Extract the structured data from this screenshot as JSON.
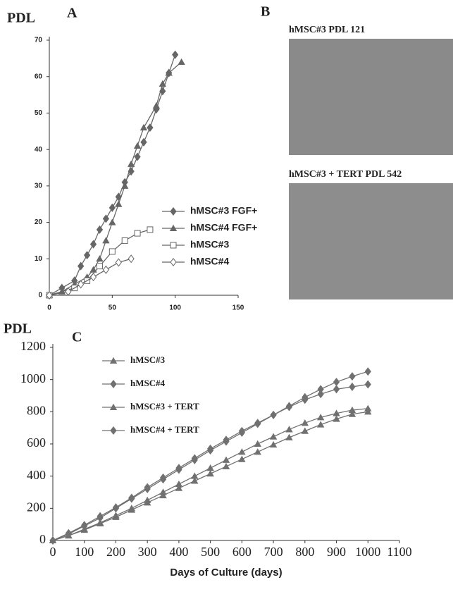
{
  "chart_data": [
    {
      "type": "line",
      "panel": "A",
      "ylabel": "PDL",
      "xlim": [
        0,
        150
      ],
      "xticks": [
        0,
        50,
        100,
        150
      ],
      "ylim": [
        0,
        70
      ],
      "yticks": [
        0,
        10,
        20,
        30,
        40,
        50,
        60,
        70
      ],
      "series": [
        {
          "name": "hMSC#3 FGF+",
          "color": "#666666",
          "marker": "diamond",
          "x": [
            0,
            10,
            20,
            25,
            30,
            35,
            40,
            45,
            50,
            55,
            60,
            65,
            70,
            75,
            80,
            85,
            90,
            95,
            100
          ],
          "values": [
            0,
            2,
            4,
            8,
            11,
            14,
            18,
            21,
            24,
            27,
            31,
            34,
            38,
            42,
            46,
            51,
            56,
            61,
            66
          ]
        },
        {
          "name": "hMSC#4 FGF+",
          "color": "#666666",
          "marker": "triangle",
          "x": [
            0,
            10,
            20,
            30,
            35,
            40,
            45,
            50,
            55,
            60,
            65,
            70,
            75,
            85,
            90,
            95,
            105
          ],
          "values": [
            0,
            1,
            3,
            5,
            7,
            10,
            15,
            20,
            25,
            30,
            36,
            41,
            46,
            52,
            58,
            61,
            64
          ]
        },
        {
          "name": "hMSC#3",
          "color": "#666666",
          "marker": "square",
          "x": [
            0,
            20,
            30,
            40,
            50,
            60,
            70,
            80
          ],
          "values": [
            0,
            2,
            4,
            8,
            12,
            15,
            17,
            18
          ]
        },
        {
          "name": "hMSC#4",
          "color": "#666666",
          "marker": "open-diamond",
          "x": [
            0,
            15,
            25,
            35,
            45,
            55,
            65
          ],
          "values": [
            0,
            1,
            3,
            5,
            7,
            9,
            10
          ]
        }
      ]
    },
    {
      "type": "line",
      "panel": "C",
      "ylabel": "PDL",
      "xlabel": "Days of Culture (days)",
      "xlim": [
        0,
        1100
      ],
      "xticks": [
        0,
        100,
        200,
        300,
        400,
        500,
        600,
        700,
        800,
        900,
        1000,
        1100
      ],
      "ylim": [
        0,
        1200
      ],
      "yticks": [
        0,
        200,
        400,
        600,
        800,
        1000,
        1200
      ],
      "series": [
        {
          "name": "hMSC#3",
          "color": "#707070",
          "marker": "triangle",
          "x": [
            0,
            50,
            100,
            150,
            200,
            250,
            300,
            350,
            400,
            450,
            500,
            550,
            600,
            650,
            700,
            750,
            800,
            850,
            900,
            950,
            1000
          ],
          "values": [
            0,
            30,
            65,
            105,
            145,
            190,
            235,
            280,
            325,
            370,
            415,
            460,
            505,
            550,
            595,
            640,
            680,
            720,
            755,
            785,
            800
          ]
        },
        {
          "name": "hMSC#4",
          "color": "#707070",
          "marker": "diamond",
          "x": [
            0,
            50,
            100,
            150,
            200,
            250,
            300,
            350,
            400,
            450,
            500,
            550,
            600,
            650,
            700,
            750,
            800,
            850,
            900,
            950,
            1000
          ],
          "values": [
            0,
            40,
            90,
            140,
            200,
            260,
            320,
            380,
            440,
            500,
            560,
            615,
            670,
            725,
            780,
            835,
            890,
            940,
            985,
            1020,
            1050
          ]
        },
        {
          "name": "hMSC#3 + TERT",
          "color": "#707070",
          "marker": "triangle",
          "x": [
            0,
            50,
            100,
            150,
            200,
            250,
            300,
            350,
            400,
            450,
            500,
            550,
            600,
            650,
            700,
            750,
            800,
            850,
            900,
            950,
            1000
          ],
          "values": [
            0,
            30,
            70,
            110,
            155,
            200,
            250,
            300,
            350,
            400,
            450,
            500,
            550,
            600,
            645,
            690,
            730,
            765,
            790,
            810,
            820
          ]
        },
        {
          "name": "hMSC#4 + TERT",
          "color": "#707070",
          "marker": "diamond",
          "x": [
            0,
            50,
            100,
            150,
            200,
            250,
            300,
            350,
            400,
            450,
            500,
            550,
            600,
            650,
            700,
            750,
            800,
            850,
            900,
            950,
            1000
          ],
          "values": [
            0,
            45,
            95,
            150,
            205,
            265,
            330,
            390,
            450,
            510,
            570,
            625,
            680,
            730,
            780,
            830,
            875,
            910,
            940,
            955,
            970
          ]
        }
      ]
    }
  ],
  "panel_b": {
    "panel": "B",
    "images": [
      {
        "caption": "hMSC#3  PDL  121"
      },
      {
        "caption": "hMSC#3 + TERT PDL 542"
      }
    ]
  }
}
